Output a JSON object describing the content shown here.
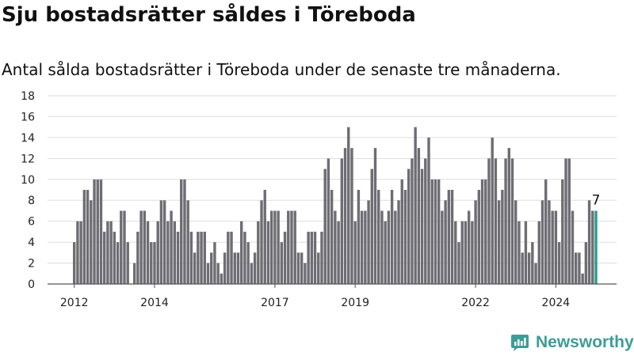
{
  "header": {
    "title": "Sju bostadsrätter såldes i Töreboda",
    "subtitle": "Antal sålda bostadsrätter i Töreboda under de senaste tre månaderna."
  },
  "brand": {
    "name": "Newsworthy",
    "icon": "newsworthy-logo-icon",
    "color": "#3e9c97"
  },
  "colors": {
    "bar": "#6e6d73",
    "highlight": "#2a9d8f",
    "grid": "#dddddd",
    "axis": "#555555"
  },
  "chart_data": {
    "type": "bar",
    "title": "",
    "xlabel": "",
    "ylabel": "",
    "x_start": "2012-01",
    "x_end": "2024-12",
    "x_tick_labels": [
      "2012",
      "2014",
      "2017",
      "2019",
      "2022",
      "2024"
    ],
    "x_tick_dates": [
      "2012-01",
      "2014-01",
      "2017-01",
      "2019-01",
      "2022-01",
      "2024-01"
    ],
    "ylim": [
      0,
      18
    ],
    "y_ticks": [
      0,
      2,
      4,
      6,
      8,
      10,
      12,
      14,
      16,
      18
    ],
    "grid": true,
    "highlight_label": "7",
    "series": [
      {
        "values": [
          4,
          6,
          6,
          9,
          9,
          8,
          10,
          10,
          10,
          5,
          6,
          6,
          5,
          4,
          7,
          7,
          4,
          0,
          2,
          5,
          7,
          7,
          6,
          4,
          4,
          6,
          8,
          8,
          6,
          7,
          6,
          5,
          10,
          10,
          8,
          5,
          3,
          5,
          5,
          5,
          2,
          3,
          4,
          2,
          1,
          3,
          5,
          5,
          3,
          3,
          6,
          5,
          4,
          2,
          3,
          6,
          8,
          9,
          6,
          7,
          7,
          7,
          4,
          5,
          7,
          7,
          7,
          3,
          3,
          2,
          5,
          5,
          5,
          3,
          5,
          11,
          12,
          9,
          7,
          6,
          12,
          13,
          15,
          13,
          6,
          9,
          7,
          7,
          8,
          11,
          13,
          9,
          7,
          6,
          7,
          9,
          7,
          8,
          10,
          9,
          11,
          12,
          15,
          13,
          11,
          12,
          14,
          10,
          10,
          10,
          7,
          8,
          9,
          9,
          6,
          4,
          6,
          6,
          7,
          6,
          8,
          9,
          10,
          10,
          12,
          14,
          12,
          8,
          9,
          12,
          13,
          12,
          8,
          6,
          3,
          6,
          3,
          4,
          2,
          6,
          8,
          10,
          8,
          7,
          7,
          4,
          10,
          12,
          12,
          7,
          3,
          3,
          1,
          4,
          8,
          7,
          7
        ]
      }
    ]
  }
}
